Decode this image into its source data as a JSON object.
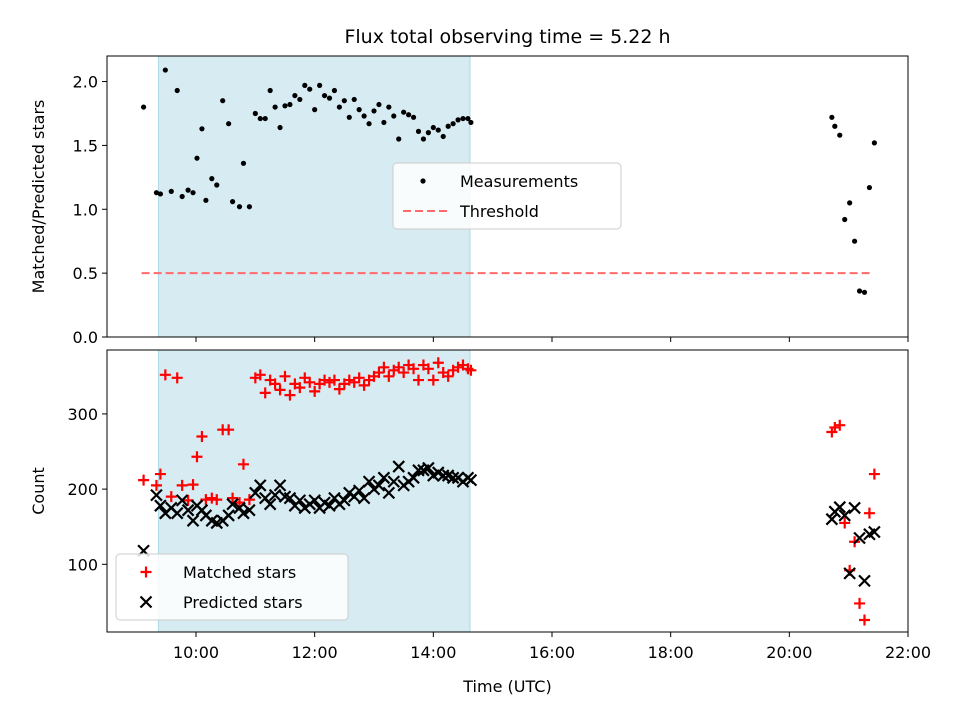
{
  "chart_data": [
    {
      "type": "scatter",
      "title": "Flux total observing time = 5.22 h",
      "xlabel": "",
      "ylabel": "Matched/Predicted stars",
      "xlim": [
        "08:30",
        "22:00"
      ],
      "ylim": [
        0,
        2.2
      ],
      "yticks": [
        "0.0",
        "0.5",
        "1.0",
        "1.5",
        "2.0"
      ],
      "shaded_interval": [
        "09:22",
        "14:37"
      ],
      "shade_color": "#add8e6",
      "legend_placement": "center",
      "series": [
        {
          "name": "Measurements",
          "marker": "dot",
          "color": "#000000",
          "points": [
            [
              "09:07",
              1.8
            ],
            [
              "09:20",
              1.13
            ],
            [
              "09:24",
              1.12
            ],
            [
              "09:29",
              2.09
            ],
            [
              "09:35",
              1.14
            ],
            [
              "09:41",
              1.93
            ],
            [
              "09:46",
              1.1
            ],
            [
              "09:52",
              1.15
            ],
            [
              "09:57",
              1.13
            ],
            [
              "10:01",
              1.4
            ],
            [
              "10:06",
              1.63
            ],
            [
              "10:10",
              1.07
            ],
            [
              "10:16",
              1.24
            ],
            [
              "10:21",
              1.19
            ],
            [
              "10:27",
              1.85
            ],
            [
              "10:33",
              1.67
            ],
            [
              "10:37",
              1.06
            ],
            [
              "10:44",
              1.02
            ],
            [
              "10:48",
              1.36
            ],
            [
              "10:54",
              1.02
            ],
            [
              "11:00",
              1.75
            ],
            [
              "11:05",
              1.71
            ],
            [
              "11:10",
              1.71
            ],
            [
              "11:15",
              1.93
            ],
            [
              "11:20",
              1.8
            ],
            [
              "11:25",
              1.64
            ],
            [
              "11:30",
              1.81
            ],
            [
              "11:35",
              1.82
            ],
            [
              "11:40",
              1.89
            ],
            [
              "11:45",
              1.86
            ],
            [
              "11:50",
              1.97
            ],
            [
              "11:55",
              1.94
            ],
            [
              "12:00",
              1.78
            ],
            [
              "12:05",
              1.97
            ],
            [
              "12:10",
              1.89
            ],
            [
              "12:15",
              1.87
            ],
            [
              "12:20",
              1.93
            ],
            [
              "12:25",
              1.8
            ],
            [
              "12:30",
              1.85
            ],
            [
              "12:35",
              1.72
            ],
            [
              "12:40",
              1.86
            ],
            [
              "12:45",
              1.78
            ],
            [
              "12:50",
              1.73
            ],
            [
              "12:55",
              1.67
            ],
            [
              "13:00",
              1.77
            ],
            [
              "13:05",
              1.82
            ],
            [
              "13:10",
              1.68
            ],
            [
              "13:15",
              1.8
            ],
            [
              "13:20",
              1.73
            ],
            [
              "13:25",
              1.55
            ],
            [
              "13:30",
              1.76
            ],
            [
              "13:35",
              1.74
            ],
            [
              "13:40",
              1.72
            ],
            [
              "13:45",
              1.61
            ],
            [
              "13:50",
              1.55
            ],
            [
              "13:55",
              1.6
            ],
            [
              "14:00",
              1.64
            ],
            [
              "14:05",
              1.62
            ],
            [
              "14:10",
              1.57
            ],
            [
              "14:15",
              1.65
            ],
            [
              "14:20",
              1.67
            ],
            [
              "14:25",
              1.7
            ],
            [
              "14:30",
              1.71
            ],
            [
              "14:35",
              1.71
            ],
            [
              "14:38",
              1.68
            ],
            [
              "20:43",
              1.72
            ],
            [
              "20:46",
              1.65
            ],
            [
              "20:51",
              1.58
            ],
            [
              "20:56",
              0.92
            ],
            [
              "21:01",
              1.05
            ],
            [
              "21:06",
              0.75
            ],
            [
              "21:11",
              0.36
            ],
            [
              "21:16",
              0.35
            ],
            [
              "21:21",
              1.17
            ],
            [
              "21:26",
              1.52
            ]
          ]
        },
        {
          "name": "Threshold",
          "marker": "dashed-line",
          "color": "#ff6b6b",
          "points": [
            [
              "09:05",
              0.5
            ],
            [
              "21:25",
              0.5
            ]
          ]
        }
      ]
    },
    {
      "type": "scatter",
      "title": "",
      "xlabel": "Time (UTC)",
      "ylabel": "Count",
      "xlim": [
        "08:30",
        "22:00"
      ],
      "ylim": [
        10,
        385
      ],
      "yticks": [
        "100",
        "200",
        "300"
      ],
      "xticks": [
        "10:00",
        "12:00",
        "14:00",
        "16:00",
        "18:00",
        "20:00",
        "22:00"
      ],
      "shaded_interval": [
        "09:22",
        "14:37"
      ],
      "shade_color": "#add8e6",
      "legend_placement": "lower-left",
      "series": [
        {
          "name": "Matched stars",
          "marker": "plus",
          "color": "#ff0000",
          "points": [
            [
              "09:07",
              212
            ],
            [
              "09:20",
              205
            ],
            [
              "09:24",
              220
            ],
            [
              "09:29",
              352
            ],
            [
              "09:35",
              190
            ],
            [
              "09:41",
              348
            ],
            [
              "09:46",
              205
            ],
            [
              "09:52",
              185
            ],
            [
              "09:57",
              206
            ],
            [
              "10:01",
              243
            ],
            [
              "10:06",
              270
            ],
            [
              "10:10",
              186
            ],
            [
              "10:16",
              188
            ],
            [
              "10:21",
              186
            ],
            [
              "10:27",
              279
            ],
            [
              "10:33",
              279
            ],
            [
              "10:37",
              188
            ],
            [
              "10:44",
              182
            ],
            [
              "10:48",
              233
            ],
            [
              "10:54",
              186
            ],
            [
              "11:00",
              348
            ],
            [
              "11:05",
              352
            ],
            [
              "11:10",
              328
            ],
            [
              "11:15",
              345
            ],
            [
              "11:20",
              340
            ],
            [
              "11:25",
              332
            ],
            [
              "11:30",
              350
            ],
            [
              "11:35",
              325
            ],
            [
              "11:40",
              340
            ],
            [
              "11:45",
              335
            ],
            [
              "11:50",
              348
            ],
            [
              "11:55",
              342
            ],
            [
              "12:00",
              330
            ],
            [
              "12:05",
              340
            ],
            [
              "12:10",
              345
            ],
            [
              "12:15",
              342
            ],
            [
              "12:20",
              345
            ],
            [
              "12:25",
              333
            ],
            [
              "12:30",
              340
            ],
            [
              "12:35",
              345
            ],
            [
              "12:40",
              342
            ],
            [
              "12:45",
              348
            ],
            [
              "12:50",
              338
            ],
            [
              "12:55",
              345
            ],
            [
              "13:00",
              350
            ],
            [
              "13:05",
              355
            ],
            [
              "13:10",
              362
            ],
            [
              "13:15",
              350
            ],
            [
              "13:20",
              358
            ],
            [
              "13:25",
              362
            ],
            [
              "13:30",
              355
            ],
            [
              "13:35",
              365
            ],
            [
              "13:40",
              360
            ],
            [
              "13:45",
              345
            ],
            [
              "13:50",
              365
            ],
            [
              "13:55",
              360
            ],
            [
              "14:00",
              345
            ],
            [
              "14:05",
              368
            ],
            [
              "14:10",
              355
            ],
            [
              "14:15",
              350
            ],
            [
              "14:20",
              358
            ],
            [
              "14:25",
              362
            ],
            [
              "14:30",
              365
            ],
            [
              "14:35",
              360
            ],
            [
              "14:38",
              358
            ],
            [
              "20:43",
              276
            ],
            [
              "20:46",
              282
            ],
            [
              "20:51",
              285
            ],
            [
              "20:56",
              155
            ],
            [
              "21:01",
              92
            ],
            [
              "21:06",
              130
            ],
            [
              "21:11",
              48
            ],
            [
              "21:16",
              26
            ],
            [
              "21:21",
              168
            ],
            [
              "21:26",
              220
            ]
          ]
        },
        {
          "name": "Predicted stars",
          "marker": "x",
          "color": "#000000",
          "points": [
            [
              "09:07",
              118
            ],
            [
              "09:20",
              192
            ],
            [
              "09:24",
              178
            ],
            [
              "09:29",
              168
            ],
            [
              "09:35",
              175
            ],
            [
              "09:41",
              168
            ],
            [
              "09:46",
              185
            ],
            [
              "09:52",
              172
            ],
            [
              "09:57",
              158
            ],
            [
              "10:01",
              178
            ],
            [
              "10:06",
              172
            ],
            [
              "10:10",
              165
            ],
            [
              "10:16",
              158
            ],
            [
              "10:21",
              155
            ],
            [
              "10:27",
              158
            ],
            [
              "10:33",
              165
            ],
            [
              "10:37",
              180
            ],
            [
              "10:44",
              175
            ],
            [
              "10:48",
              168
            ],
            [
              "10:54",
              172
            ],
            [
              "11:00",
              195
            ],
            [
              "11:05",
              205
            ],
            [
              "11:10",
              188
            ],
            [
              "11:15",
              180
            ],
            [
              "11:20",
              192
            ],
            [
              "11:25",
              205
            ],
            [
              "11:30",
              190
            ],
            [
              "11:35",
              188
            ],
            [
              "11:40",
              178
            ],
            [
              "11:45",
              185
            ],
            [
              "11:50",
              175
            ],
            [
              "11:55",
              180
            ],
            [
              "12:00",
              185
            ],
            [
              "12:05",
              175
            ],
            [
              "12:10",
              182
            ],
            [
              "12:15",
              178
            ],
            [
              "12:20",
              188
            ],
            [
              "12:25",
              180
            ],
            [
              "12:30",
              185
            ],
            [
              "12:35",
              195
            ],
            [
              "12:40",
              190
            ],
            [
              "12:45",
              198
            ],
            [
              "12:50",
              188
            ],
            [
              "12:55",
              210
            ],
            [
              "13:00",
              200
            ],
            [
              "13:05",
              205
            ],
            [
              "13:10",
              215
            ],
            [
              "13:15",
              195
            ],
            [
              "13:20",
              210
            ],
            [
              "13:25",
              230
            ],
            [
              "13:30",
              205
            ],
            [
              "13:35",
              210
            ],
            [
              "13:40",
              215
            ],
            [
              "13:45",
              225
            ],
            [
              "13:50",
              225
            ],
            [
              "13:55",
              228
            ],
            [
              "14:00",
              218
            ],
            [
              "14:05",
              222
            ],
            [
              "14:10",
              218
            ],
            [
              "14:15",
              218
            ],
            [
              "14:20",
              215
            ],
            [
              "14:25",
              215
            ],
            [
              "14:30",
              210
            ],
            [
              "14:35",
              215
            ],
            [
              "14:38",
              212
            ],
            [
              "20:43",
              160
            ],
            [
              "20:46",
              170
            ],
            [
              "20:51",
              176
            ],
            [
              "20:56",
              165
            ],
            [
              "21:01",
              88
            ],
            [
              "21:06",
              175
            ],
            [
              "21:11",
              135
            ],
            [
              "21:16",
              78
            ],
            [
              "21:21",
              140
            ],
            [
              "21:26",
              143
            ]
          ]
        }
      ]
    }
  ]
}
